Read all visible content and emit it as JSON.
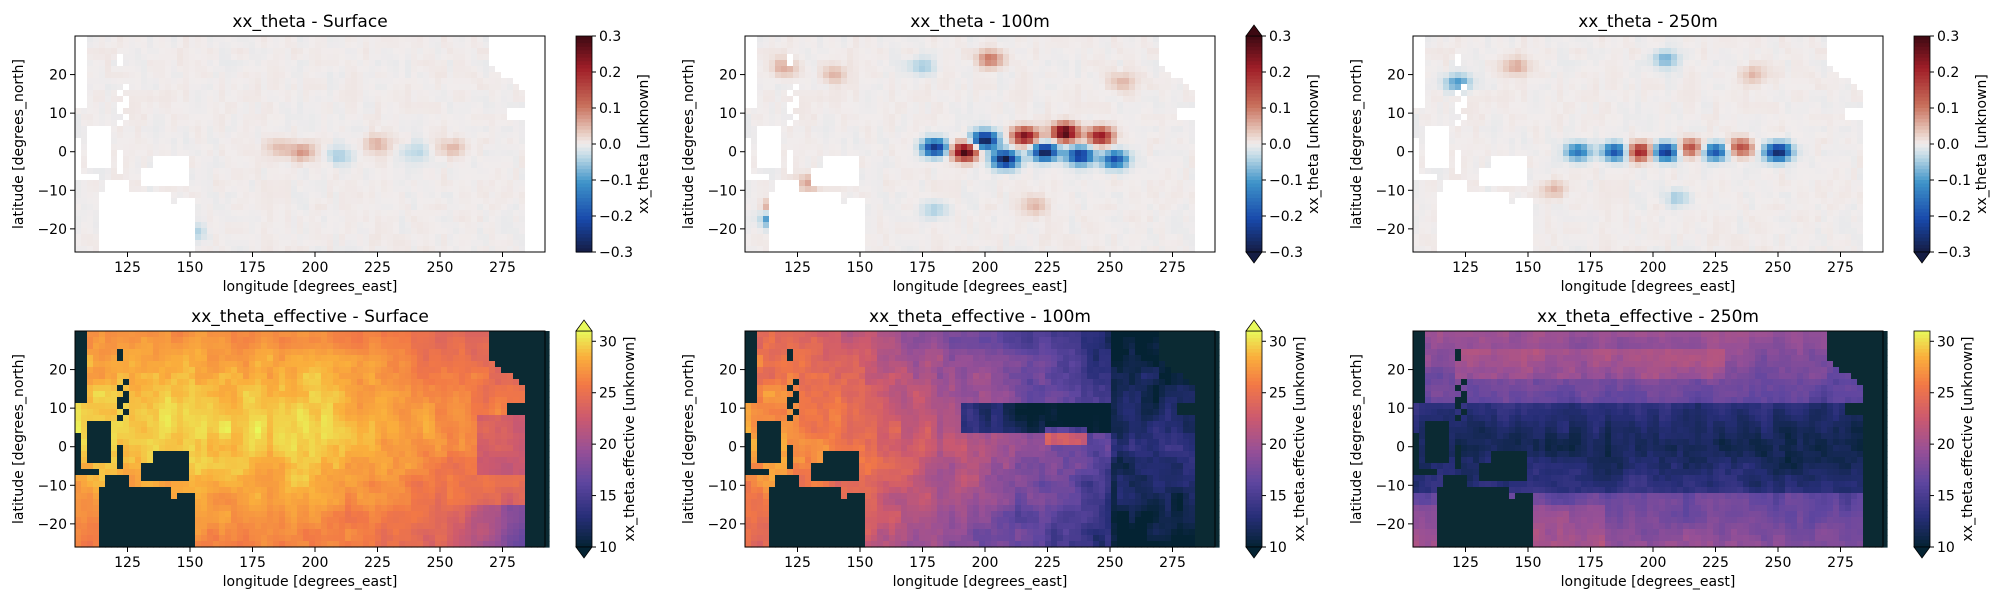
{
  "figure": {
    "top_row_titles": [
      "xx_theta - Surface",
      "xx_theta - 100m",
      "xx_theta - 250m"
    ],
    "bottom_row_titles": [
      "xx_theta_effective - Surface",
      "xx_theta_effective - 100m",
      "xx_theta_effective - 250m"
    ]
  },
  "chart_data": [
    {
      "type": "heatmap",
      "title": "xx_theta - Surface",
      "xlabel": "longitude [degrees_east]",
      "ylabel": "latitude [degrees_north]",
      "xlim": [
        104,
        292
      ],
      "ylim": [
        -26,
        30
      ],
      "xticks": [
        125,
        150,
        175,
        200,
        225,
        250,
        275
      ],
      "yticks": [
        -20,
        -10,
        0,
        10,
        20
      ],
      "colorbar": {
        "label": "xx_theta [unknown]",
        "min": -0.3,
        "max": 0.3,
        "ticks": [
          "0.3",
          "0.2",
          "0.1",
          "0.0",
          "−0.1",
          "−0.2",
          "−0.3"
        ],
        "colormap": "balance",
        "extend": "neither"
      },
      "features": [
        {
          "lon": 185,
          "lat": 1,
          "value": 0.04
        },
        {
          "lon": 195,
          "lat": 0,
          "value": 0.08
        },
        {
          "lon": 210,
          "lat": -1,
          "value": -0.05
        },
        {
          "lon": 225,
          "lat": 2,
          "value": 0.05
        },
        {
          "lon": 240,
          "lat": 0,
          "value": -0.04
        },
        {
          "lon": 255,
          "lat": 1,
          "value": 0.05
        },
        {
          "lon": 118,
          "lat": -17,
          "value": -0.03
        },
        {
          "lon": 151,
          "lat": -21,
          "value": -0.05
        }
      ]
    },
    {
      "type": "heatmap",
      "title": "xx_theta - 100m",
      "xlabel": "longitude [degrees_east]",
      "ylabel": "latitude [degrees_north]",
      "xlim": [
        104,
        292
      ],
      "ylim": [
        -26,
        30
      ],
      "xticks": [
        125,
        150,
        175,
        200,
        225,
        250,
        275
      ],
      "yticks": [
        -20,
        -10,
        0,
        10,
        20
      ],
      "colorbar": {
        "label": "xx_theta [unknown]",
        "min": -0.3,
        "max": 0.3,
        "ticks": [
          "0.3",
          "0.2",
          "0.1",
          "0.0",
          "−0.1",
          "−0.2",
          "−0.3"
        ],
        "colormap": "balance",
        "extend": "both"
      },
      "features": [
        {
          "lon": 180,
          "lat": 1,
          "value": -0.25
        },
        {
          "lon": 192,
          "lat": 0,
          "value": 0.3
        },
        {
          "lon": 200,
          "lat": 3,
          "value": -0.3
        },
        {
          "lon": 208,
          "lat": -2,
          "value": -0.3
        },
        {
          "lon": 216,
          "lat": 4,
          "value": 0.25
        },
        {
          "lon": 224,
          "lat": 0,
          "value": -0.3
        },
        {
          "lon": 232,
          "lat": 5,
          "value": 0.3
        },
        {
          "lon": 238,
          "lat": -1,
          "value": -0.25
        },
        {
          "lon": 246,
          "lat": 4,
          "value": 0.22
        },
        {
          "lon": 252,
          "lat": -2,
          "value": -0.2
        },
        {
          "lon": 120,
          "lat": 22,
          "value": 0.06
        },
        {
          "lon": 140,
          "lat": 20,
          "value": 0.05
        },
        {
          "lon": 175,
          "lat": 22,
          "value": -0.05
        },
        {
          "lon": 202,
          "lat": 24,
          "value": 0.1
        },
        {
          "lon": 255,
          "lat": 18,
          "value": 0.05
        },
        {
          "lon": 130,
          "lat": -8,
          "value": 0.06
        },
        {
          "lon": 180,
          "lat": -15,
          "value": -0.05
        },
        {
          "lon": 220,
          "lat": -14,
          "value": 0.05
        },
        {
          "lon": 118,
          "lat": -15,
          "value": 0.3
        },
        {
          "lon": 117,
          "lat": -17,
          "value": -0.3
        }
      ]
    },
    {
      "type": "heatmap",
      "title": "xx_theta - 250m",
      "xlabel": "longitude [degrees_east]",
      "ylabel": "latitude [degrees_north]",
      "xlim": [
        104,
        292
      ],
      "ylim": [
        -26,
        30
      ],
      "xticks": [
        125,
        150,
        175,
        200,
        225,
        250,
        275
      ],
      "yticks": [
        -20,
        -10,
        0,
        10,
        20
      ],
      "colorbar": {
        "label": "xx_theta [unknown]",
        "min": -0.3,
        "max": 0.3,
        "ticks": [
          "0.3",
          "0.2",
          "0.1",
          "0.0",
          "−0.1",
          "−0.2",
          "−0.3"
        ],
        "colormap": "balance",
        "extend": "min"
      },
      "features": [
        {
          "lon": 170,
          "lat": 0,
          "value": -0.15
        },
        {
          "lon": 185,
          "lat": 0,
          "value": -0.2
        },
        {
          "lon": 195,
          "lat": 0,
          "value": 0.22
        },
        {
          "lon": 205,
          "lat": 0,
          "value": -0.25
        },
        {
          "lon": 215,
          "lat": 1,
          "value": 0.15
        },
        {
          "lon": 225,
          "lat": 0,
          "value": -0.2
        },
        {
          "lon": 235,
          "lat": 1,
          "value": 0.15
        },
        {
          "lon": 250,
          "lat": 0,
          "value": -0.28
        },
        {
          "lon": 122,
          "lat": 18,
          "value": -0.1
        },
        {
          "lon": 145,
          "lat": 22,
          "value": 0.06
        },
        {
          "lon": 205,
          "lat": 24,
          "value": -0.08
        },
        {
          "lon": 240,
          "lat": 20,
          "value": 0.05
        },
        {
          "lon": 160,
          "lat": -10,
          "value": 0.05
        },
        {
          "lon": 210,
          "lat": -12,
          "value": -0.05
        }
      ]
    },
    {
      "type": "heatmap",
      "title": "xx_theta_effective - Surface",
      "xlabel": "longitude [degrees_east]",
      "ylabel": "latitude [degrees_north]",
      "xlim": [
        104,
        292
      ],
      "ylim": [
        -26,
        30
      ],
      "xticks": [
        125,
        150,
        175,
        200,
        225,
        250,
        275
      ],
      "yticks": [
        -20,
        -10,
        0,
        10,
        20
      ],
      "colorbar": {
        "label": "xx_theta.effective [unknown]",
        "min": 10,
        "max": 31,
        "ticks": [
          "30",
          "25",
          "20",
          "15",
          "10"
        ],
        "colormap": "thermal",
        "extend": "both"
      },
      "depth": "surface"
    },
    {
      "type": "heatmap",
      "title": "xx_theta_effective - 100m",
      "xlabel": "longitude [degrees_east]",
      "ylabel": "latitude [degrees_north]",
      "xlim": [
        104,
        292
      ],
      "ylim": [
        -26,
        30
      ],
      "xticks": [
        125,
        150,
        175,
        200,
        225,
        250,
        275
      ],
      "yticks": [
        -20,
        -10,
        0,
        10,
        20
      ],
      "colorbar": {
        "label": "xx_theta.effective [unknown]",
        "min": 10,
        "max": 31,
        "ticks": [
          "30",
          "25",
          "20",
          "15",
          "10"
        ],
        "colormap": "thermal",
        "extend": "both"
      },
      "depth": "100m"
    },
    {
      "type": "heatmap",
      "title": "xx_theta_effective - 250m",
      "xlabel": "longitude [degrees_east]",
      "ylabel": "latitude [degrees_north]",
      "xlim": [
        104,
        292
      ],
      "ylim": [
        -26,
        30
      ],
      "xticks": [
        125,
        150,
        175,
        200,
        225,
        250,
        275
      ],
      "yticks": [
        -20,
        -10,
        0,
        10,
        20
      ],
      "colorbar": {
        "label": "xx_theta.effective [unknown]",
        "min": 10,
        "max": 31,
        "ticks": [
          "30",
          "25",
          "20",
          "15",
          "10"
        ],
        "colormap": "thermal",
        "extend": "min"
      },
      "depth": "250m"
    }
  ]
}
